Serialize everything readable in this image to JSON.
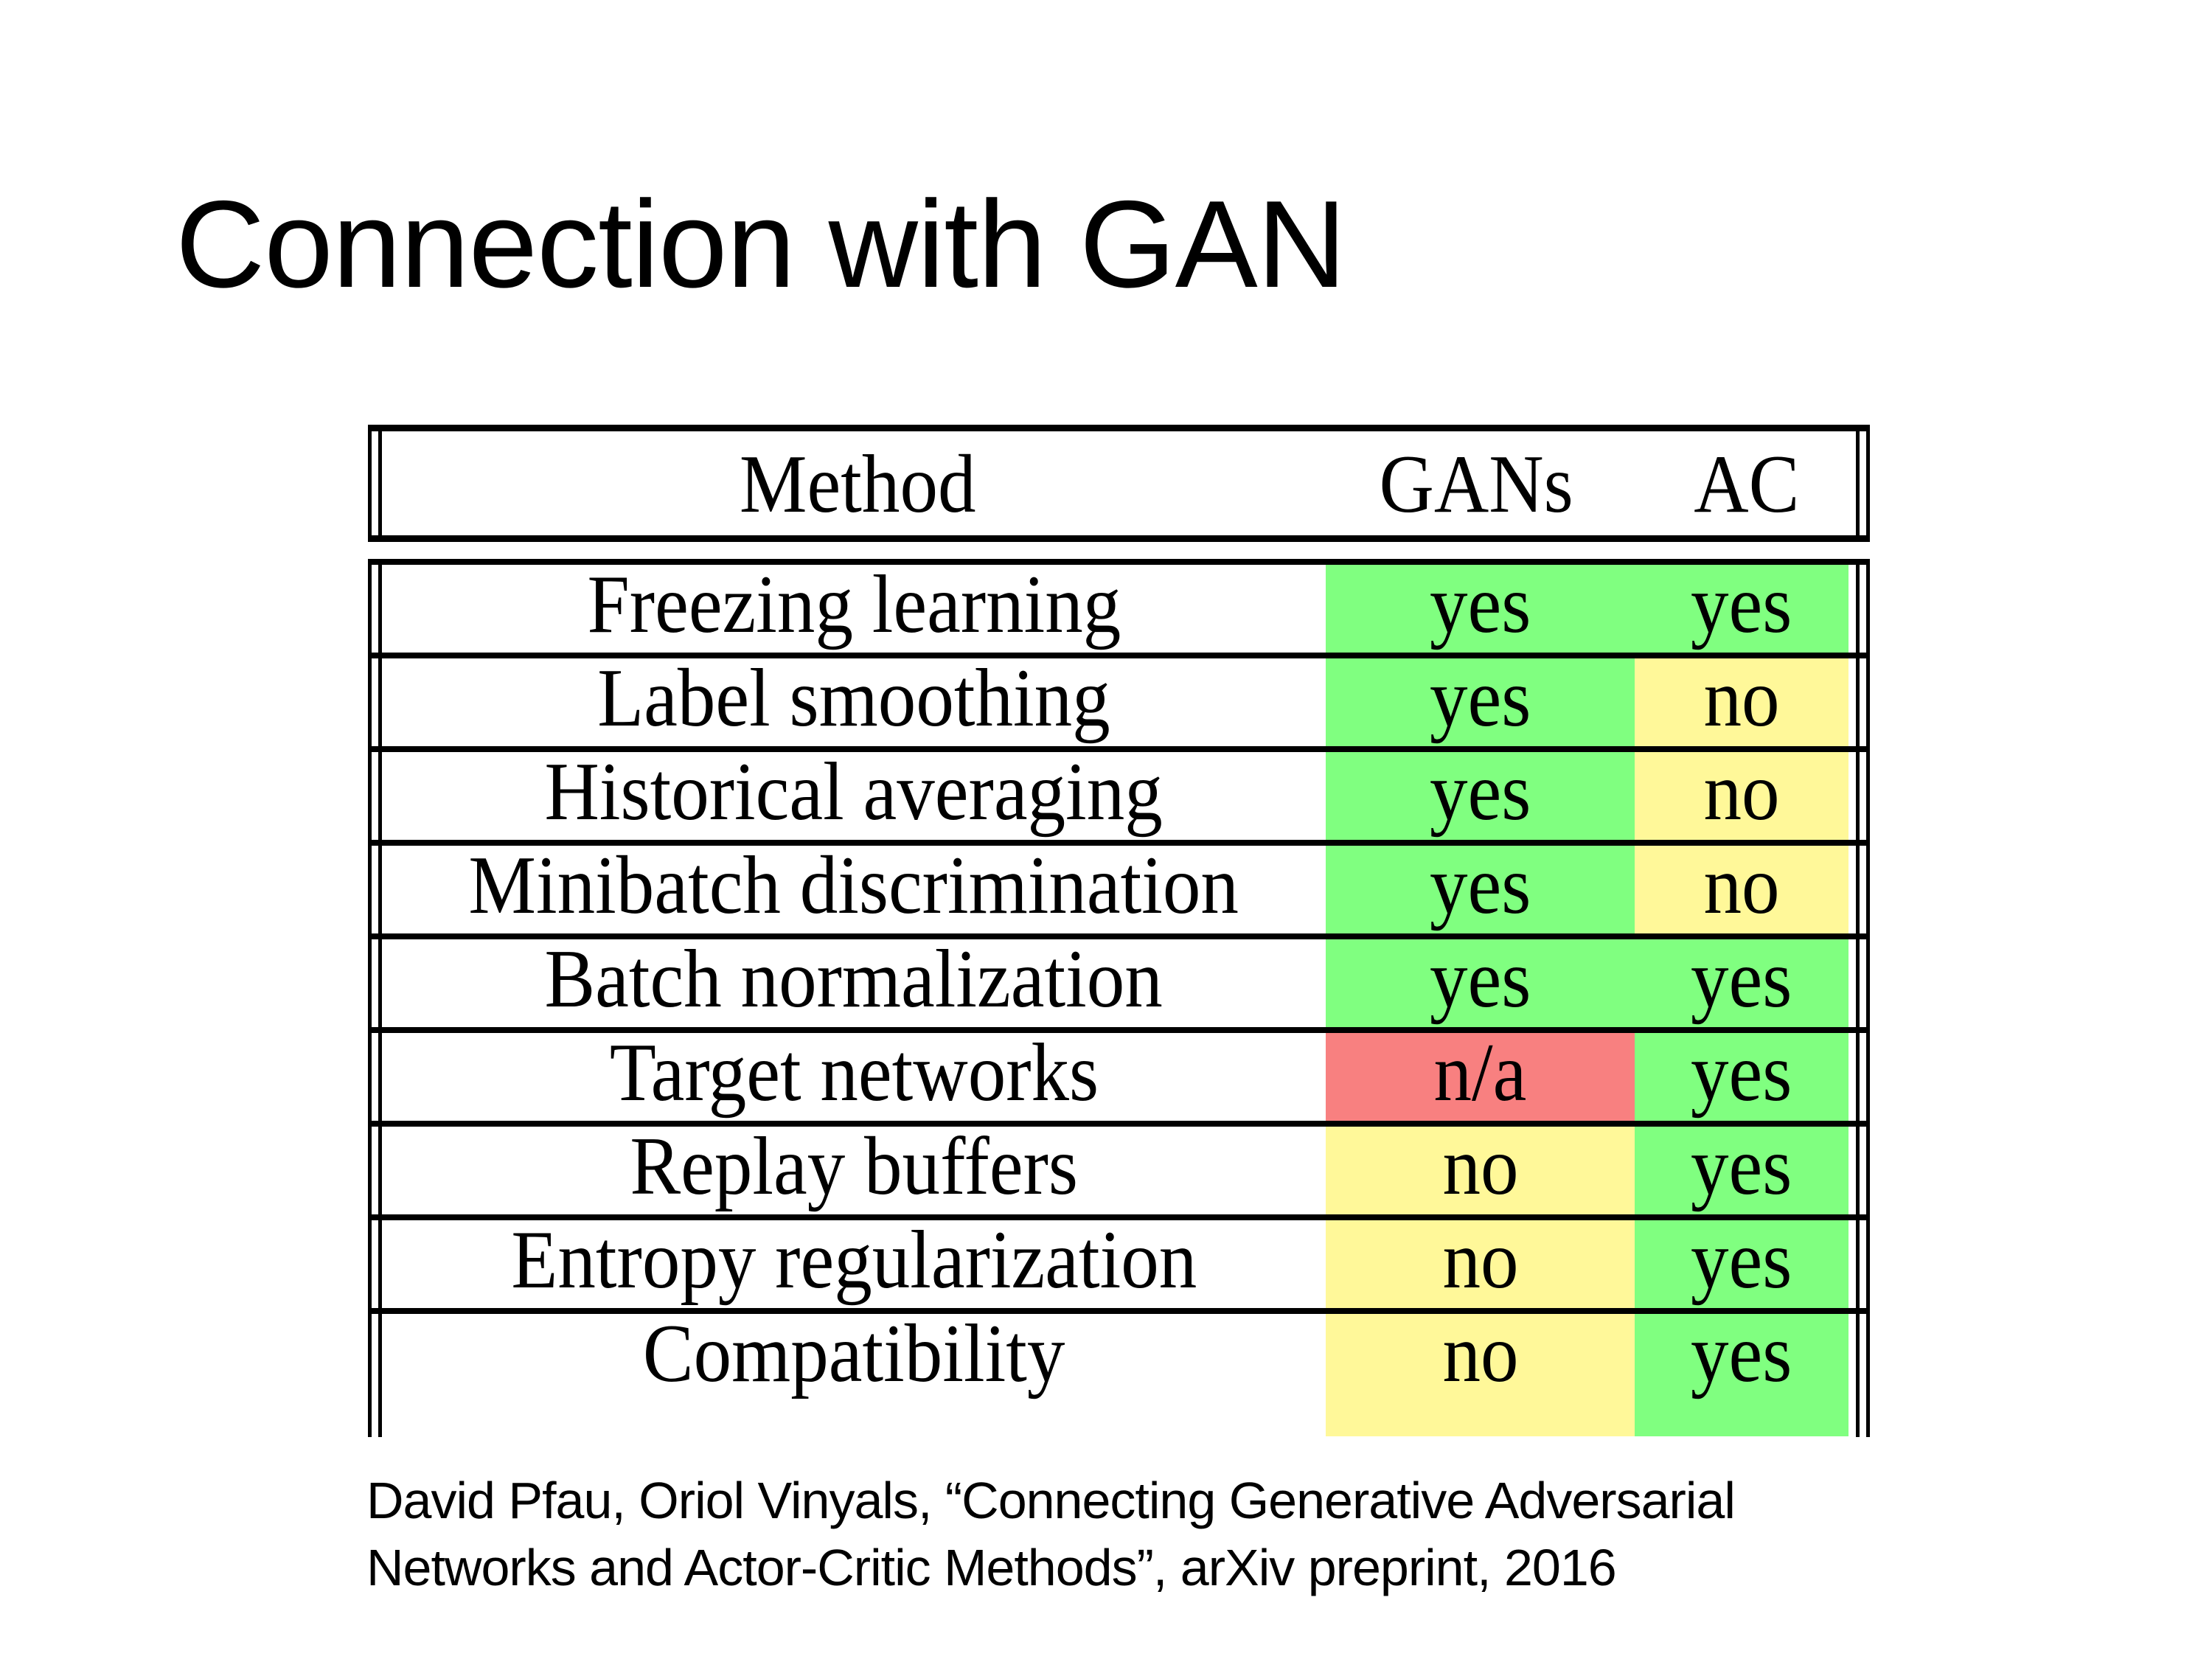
{
  "slide": {
    "title": "Connection with GAN",
    "citation_line1": "David Pfau, Oriol Vinyals, “Connecting Generative Adversarial",
    "citation_line2": "Networks and Actor-Critic Methods”, arXiv preprint, 2016"
  },
  "table": {
    "headers": [
      "Method",
      "GANs",
      "AC"
    ],
    "colors": {
      "yes": "#80ff80",
      "no": "#fff899",
      "n/a": "#f88080"
    },
    "rows": [
      {
        "method": "Freezing learning",
        "gans": "yes",
        "ac": "yes"
      },
      {
        "method": "Label smoothing",
        "gans": "yes",
        "ac": "no"
      },
      {
        "method": "Historical averaging",
        "gans": "yes",
        "ac": "no"
      },
      {
        "method": "Minibatch discrimination",
        "gans": "yes",
        "ac": "no"
      },
      {
        "method": "Batch normalization",
        "gans": "yes",
        "ac": "yes"
      },
      {
        "method": "Target networks",
        "gans": "n/a",
        "ac": "yes"
      },
      {
        "method": "Replay buffers",
        "gans": "no",
        "ac": "yes"
      },
      {
        "method": "Entropy regularization",
        "gans": "no",
        "ac": "yes"
      },
      {
        "method": "Compatibility",
        "gans": "no",
        "ac": "yes"
      }
    ]
  }
}
